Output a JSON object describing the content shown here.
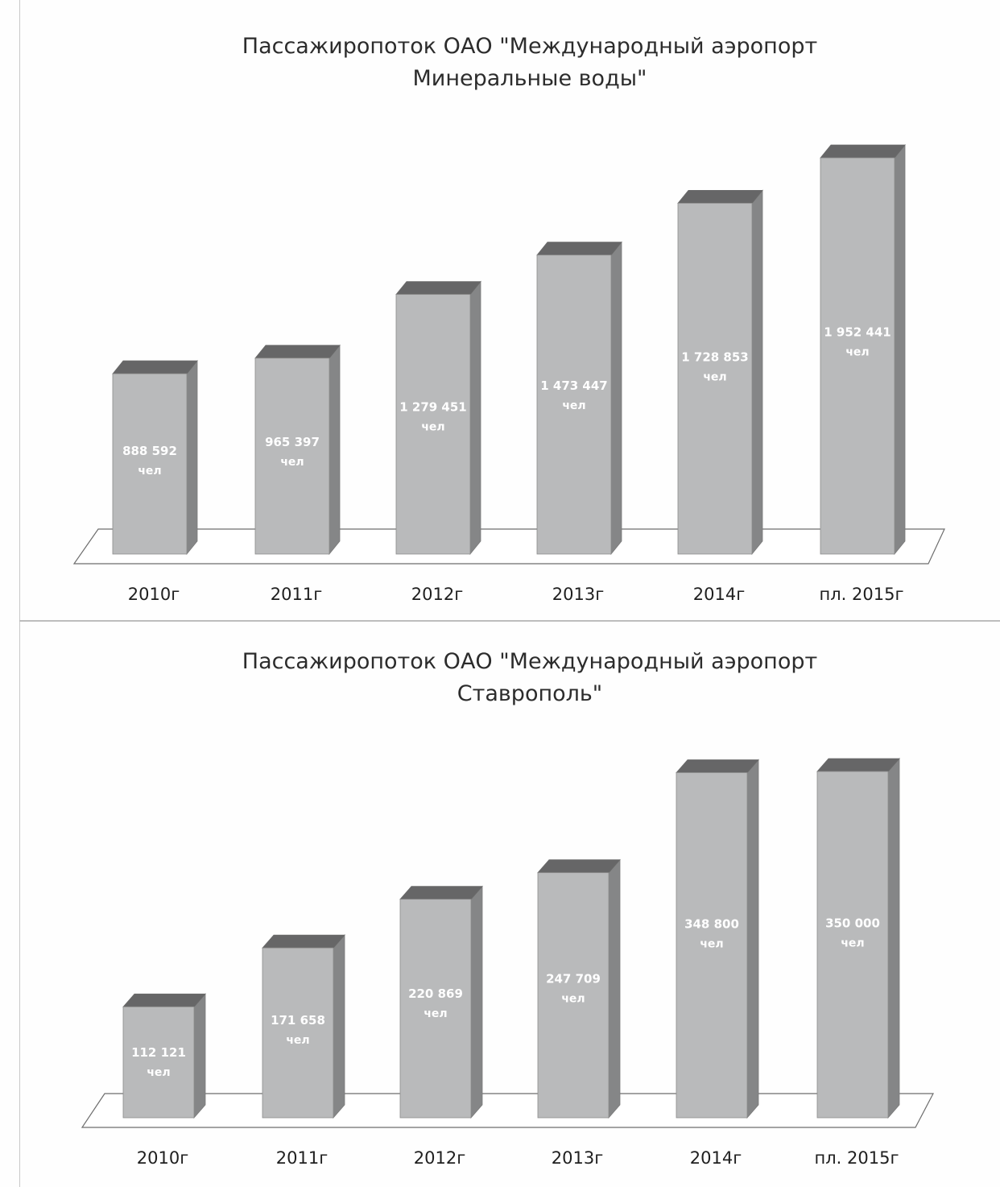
{
  "chart_data": [
    {
      "type": "bar",
      "title": "Пассажиропоток   ОАО  \"Международный аэропорт\nМинеральные воды\"",
      "categories": [
        "2010г",
        "2011г",
        "2012г",
        "2013г",
        "2014г",
        "пл. 2015г"
      ],
      "values": [
        888592,
        965397,
        1279451,
        1473447,
        1728853,
        1952441
      ],
      "value_labels": [
        "888 592",
        "965 397",
        "1 279 451",
        "1 473 447",
        "1 728 853",
        "1 952 441"
      ],
      "unit_label": "чел",
      "ylim": [
        0,
        2300000
      ],
      "grid": false,
      "legend": "none",
      "style": "3d-column",
      "bar_color": "#b9babb"
    },
    {
      "type": "bar",
      "title": "Пассажиропоток ОАО \"Международный аэропорт\nСтаврополь\"",
      "categories": [
        "2010г",
        "2011г",
        "2012г",
        "2013г",
        "2014г",
        "пл. 2015г"
      ],
      "values": [
        112121,
        171658,
        220869,
        247709,
        348800,
        350000
      ],
      "value_labels": [
        "112 121",
        "171 658",
        "220 869",
        "247 709",
        "348 800",
        "350 000"
      ],
      "unit_label": "чел",
      "ylim": [
        0,
        400000
      ],
      "grid": false,
      "legend": "none",
      "style": "3d-column",
      "bar_color": "#b9babb"
    }
  ]
}
